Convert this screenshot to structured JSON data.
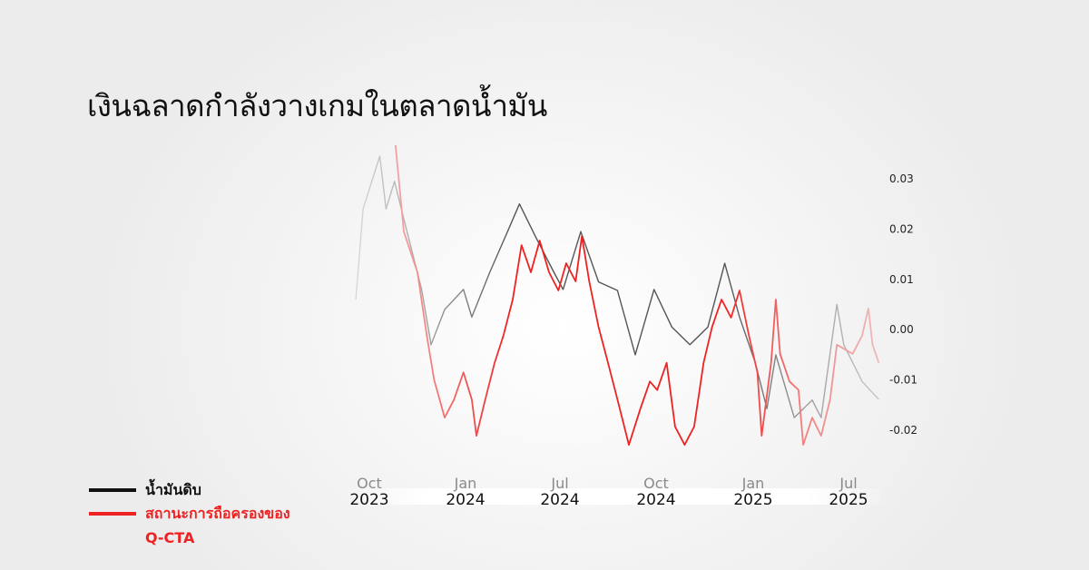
{
  "title": "เงินฉลาดกำลังวางเกมในตลาดน้ำมัน",
  "chart_data": {
    "type": "line",
    "title": "เงินฉลาดกำลังวางเกมในตลาดน้ำมัน",
    "xlabel": "",
    "ylabel": "",
    "x_ticks": [
      {
        "month": "Oct",
        "year": "2023",
        "date": "2023-10-01"
      },
      {
        "month": "Jan",
        "year": "2024",
        "date": "2024-01-01"
      },
      {
        "month": "Jul",
        "year": "2024",
        "date": "2024-07-01"
      },
      {
        "month": "Oct",
        "year": "2024",
        "date": "2024-10-01"
      },
      {
        "month": "Jan",
        "year": "2025",
        "date": "2025-01-01"
      },
      {
        "month": "Jul",
        "year": "2025",
        "date": "2025-07-01"
      }
    ],
    "y_ticks": [
      "0.03",
      "0.02",
      "0.01",
      "0.00",
      "-0.01",
      "-0.02"
    ],
    "ylim": [
      -0.025,
      0.037
    ],
    "y_axis_position": "right",
    "grid": false,
    "legend": {
      "position": "bottom-left",
      "entries": [
        "น้ำมันดิบ",
        "สถานะการถือครองของ Q-CTA"
      ]
    },
    "series": [
      {
        "name": "น้ำมันดิบ",
        "color": "#555555",
        "points": [
          [
            "2023-09-18",
            0.006
          ],
          [
            "2023-09-25",
            0.024
          ],
          [
            "2023-10-11",
            0.0345
          ],
          [
            "2023-10-17",
            0.024
          ],
          [
            "2023-10-25",
            0.0295
          ],
          [
            "2023-11-03",
            0.022
          ],
          [
            "2023-11-20",
            0.008
          ],
          [
            "2023-11-29",
            -0.003
          ],
          [
            "2023-12-12",
            0.004
          ],
          [
            "2023-12-30",
            0.008
          ],
          [
            "2024-01-13",
            0.0025
          ],
          [
            "2024-02-17",
            0.0115
          ],
          [
            "2024-03-20",
            0.019
          ],
          [
            "2024-04-14",
            0.025
          ],
          [
            "2024-05-15",
            0.0185
          ],
          [
            "2024-06-19",
            0.0115
          ],
          [
            "2024-07-04",
            0.008
          ],
          [
            "2024-07-21",
            0.0195
          ],
          [
            "2024-08-07",
            0.0095
          ],
          [
            "2024-08-25",
            0.0078
          ],
          [
            "2024-09-11",
            -0.005
          ],
          [
            "2024-09-29",
            0.008
          ],
          [
            "2024-10-16",
            0.0005
          ],
          [
            "2024-11-02",
            -0.003
          ],
          [
            "2024-11-19",
            0.0005
          ],
          [
            "2024-12-05",
            0.0132
          ],
          [
            "2024-12-19",
            0.0025
          ],
          [
            "2025-01-05",
            -0.0066
          ],
          [
            "2025-01-27",
            -0.0157
          ],
          [
            "2025-02-13",
            -0.005
          ],
          [
            "2025-03-20",
            -0.0175
          ],
          [
            "2025-04-23",
            -0.014
          ],
          [
            "2025-05-10",
            -0.0175
          ],
          [
            "2025-06-09",
            0.005
          ],
          [
            "2025-06-22",
            -0.003
          ],
          [
            "2025-07-14",
            -0.0103
          ],
          [
            "2025-07-30",
            -0.0139
          ]
        ]
      },
      {
        "name": "สถานะการถือครองของ Q-CTA",
        "color": "#ee2222",
        "points": [
          [
            "2023-10-26",
            0.0367
          ],
          [
            "2023-11-03",
            0.0195
          ],
          [
            "2023-11-16",
            0.0114
          ],
          [
            "2023-11-25",
            -0.0013
          ],
          [
            "2023-12-02",
            -0.01
          ],
          [
            "2023-12-12",
            -0.0175
          ],
          [
            "2023-12-21",
            -0.0139
          ],
          [
            "2023-12-30",
            -0.0085
          ],
          [
            "2024-01-13",
            -0.0139
          ],
          [
            "2024-01-22",
            -0.0211
          ],
          [
            "2024-02-08",
            -0.0139
          ],
          [
            "2024-02-26",
            -0.0066
          ],
          [
            "2024-03-14",
            -0.0012
          ],
          [
            "2024-04-01",
            0.006
          ],
          [
            "2024-04-18",
            0.0168
          ],
          [
            "2024-05-06",
            0.0114
          ],
          [
            "2024-05-23",
            0.0177
          ],
          [
            "2024-06-10",
            0.0114
          ],
          [
            "2024-06-28",
            0.0078
          ],
          [
            "2024-07-07",
            0.0132
          ],
          [
            "2024-07-16",
            0.0096
          ],
          [
            "2024-07-22",
            0.0186
          ],
          [
            "2024-07-29",
            0.0096
          ],
          [
            "2024-08-07",
            0.0005
          ],
          [
            "2024-08-16",
            -0.0066
          ],
          [
            "2024-08-25",
            -0.0139
          ],
          [
            "2024-09-05",
            -0.0229
          ],
          [
            "2024-09-16",
            -0.0157
          ],
          [
            "2024-09-25",
            -0.0103
          ],
          [
            "2024-10-02",
            -0.012
          ],
          [
            "2024-10-11",
            -0.0066
          ],
          [
            "2024-10-19",
            -0.0193
          ],
          [
            "2024-10-28",
            -0.0229
          ],
          [
            "2024-11-06",
            -0.0193
          ],
          [
            "2024-11-15",
            -0.0066
          ],
          [
            "2024-11-23",
            0.0005
          ],
          [
            "2024-12-02",
            0.006
          ],
          [
            "2024-12-11",
            0.0024
          ],
          [
            "2024-12-19",
            0.0078
          ],
          [
            "2024-12-28",
            -0.0012
          ],
          [
            "2025-01-09",
            -0.0085
          ],
          [
            "2025-01-17",
            -0.0211
          ],
          [
            "2025-02-04",
            -0.0066
          ],
          [
            "2025-02-13",
            0.006
          ],
          [
            "2025-02-21",
            -0.0048
          ],
          [
            "2025-03-11",
            -0.0103
          ],
          [
            "2025-03-28",
            -0.012
          ],
          [
            "2025-04-06",
            -0.0229
          ],
          [
            "2025-04-23",
            -0.0175
          ],
          [
            "2025-05-10",
            -0.0211
          ],
          [
            "2025-05-27",
            -0.0139
          ],
          [
            "2025-06-09",
            -0.003
          ],
          [
            "2025-07-05",
            -0.0048
          ],
          [
            "2025-07-14",
            -0.0012
          ],
          [
            "2025-07-20",
            0.0042
          ],
          [
            "2025-07-24",
            -0.003
          ],
          [
            "2025-07-30",
            -0.0066
          ]
        ]
      }
    ]
  },
  "legend": {
    "crude_label": "น้ำมันดิบ",
    "cta_label_line1": "สถานะการถือครองของ",
    "cta_label_line2": "Q-CTA",
    "crude_color": "#111111",
    "cta_color": "#ee2222"
  }
}
